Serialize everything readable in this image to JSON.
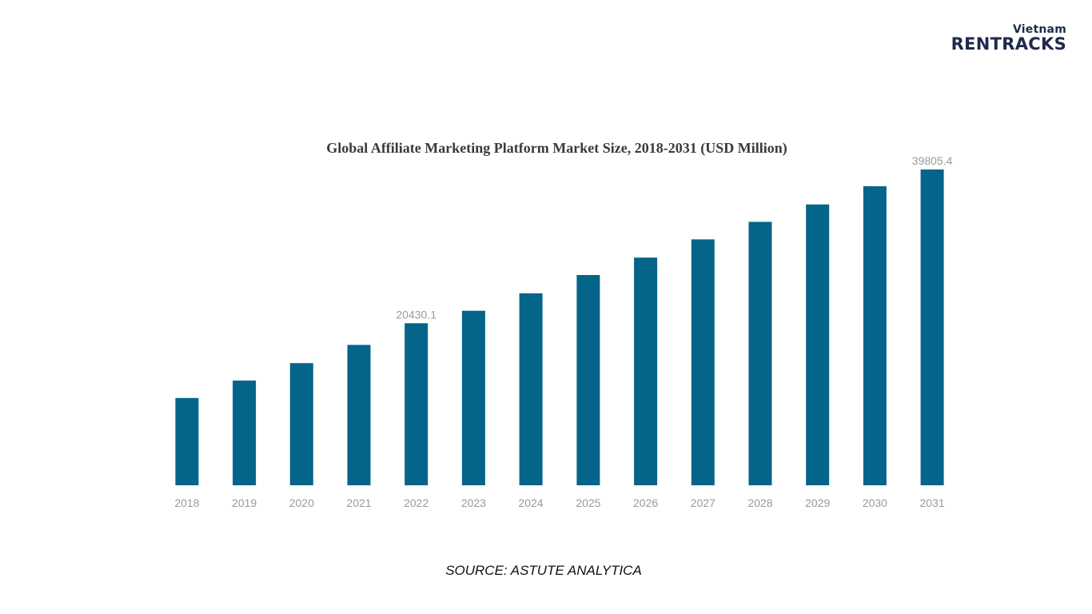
{
  "brand": {
    "line1": "Vietnam",
    "line2": "RENTRACKS"
  },
  "source": "SOURCE: ASTUTE ANALYTICA",
  "chart_data": {
    "type": "bar",
    "title": "Global Affiliate Marketing Platform Market Size, 2018-2031 (USD Million)",
    "xlabel": "",
    "ylabel": "",
    "categories": [
      "2018",
      "2019",
      "2020",
      "2021",
      "2022",
      "2023",
      "2024",
      "2025",
      "2026",
      "2027",
      "2028",
      "2029",
      "2030",
      "2031"
    ],
    "values": [
      11000,
      13200,
      15400,
      17700,
      20430.1,
      22000,
      24200,
      26500,
      28700,
      31000,
      33200,
      35400,
      37700,
      39805.4
    ],
    "data_labels": [
      {
        "category": "2022",
        "text": "20430.1"
      },
      {
        "category": "2031",
        "text": "39805.4"
      }
    ],
    "ylim": [
      0,
      39805.4
    ],
    "grid": false,
    "legend": "none",
    "bar_color": "#05648a",
    "tick_color": "#9a9a9a",
    "label_color": "#9a9a9a"
  }
}
